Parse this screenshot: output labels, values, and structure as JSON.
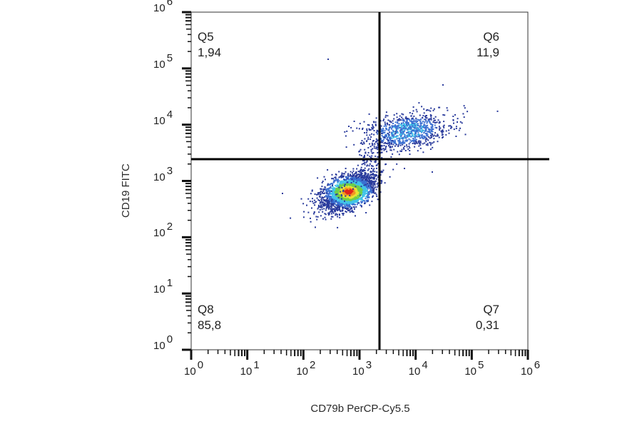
{
  "chart_data": {
    "type": "scatter",
    "subtype": "flow-cytometry-density-dot-plot",
    "xlabel": "CD79b PerCP-Cy5.5",
    "ylabel": "CD19 FITC",
    "x_scale": "log",
    "y_scale": "log",
    "xlim": [
      1,
      1000000
    ],
    "ylim": [
      1,
      1000000
    ],
    "x_ticks": [
      {
        "base": "10",
        "exp": "0"
      },
      {
        "base": "10",
        "exp": "1"
      },
      {
        "base": "10",
        "exp": "2"
      },
      {
        "base": "10",
        "exp": "3"
      },
      {
        "base": "10",
        "exp": "4"
      },
      {
        "base": "10",
        "exp": "5"
      },
      {
        "base": "10",
        "exp": "6"
      }
    ],
    "y_ticks": [
      {
        "base": "10",
        "exp": "0"
      },
      {
        "base": "10",
        "exp": "1"
      },
      {
        "base": "10",
        "exp": "2"
      },
      {
        "base": "10",
        "exp": "3"
      },
      {
        "base": "10",
        "exp": "4"
      },
      {
        "base": "10",
        "exp": "5"
      },
      {
        "base": "10",
        "exp": "6"
      }
    ],
    "gates": {
      "x_threshold": 2000,
      "y_threshold": 2500
    },
    "quadrants": [
      {
        "name": "Q5",
        "value": "1,94",
        "position": "upper-left"
      },
      {
        "name": "Q6",
        "value": "11,9",
        "position": "upper-right"
      },
      {
        "name": "Q7",
        "value": "0,31",
        "position": "lower-right"
      },
      {
        "name": "Q8",
        "value": "85,8",
        "position": "lower-left"
      }
    ],
    "populations": [
      {
        "name": "CD79b- CD19- main population",
        "center_x": 450,
        "center_y": 700,
        "density": "high",
        "quadrant": "Q8"
      },
      {
        "name": "CD79b+ CD19+ B cells",
        "center_x": 5000,
        "center_y": 9000,
        "density": "low",
        "quadrant": "Q6"
      }
    ],
    "density_colors": [
      "#2a3b9c",
      "#3b6fd1",
      "#41c3e8",
      "#6fce4a",
      "#e8e332",
      "#f29424",
      "#e0231b"
    ],
    "grid": false,
    "legend": null
  }
}
